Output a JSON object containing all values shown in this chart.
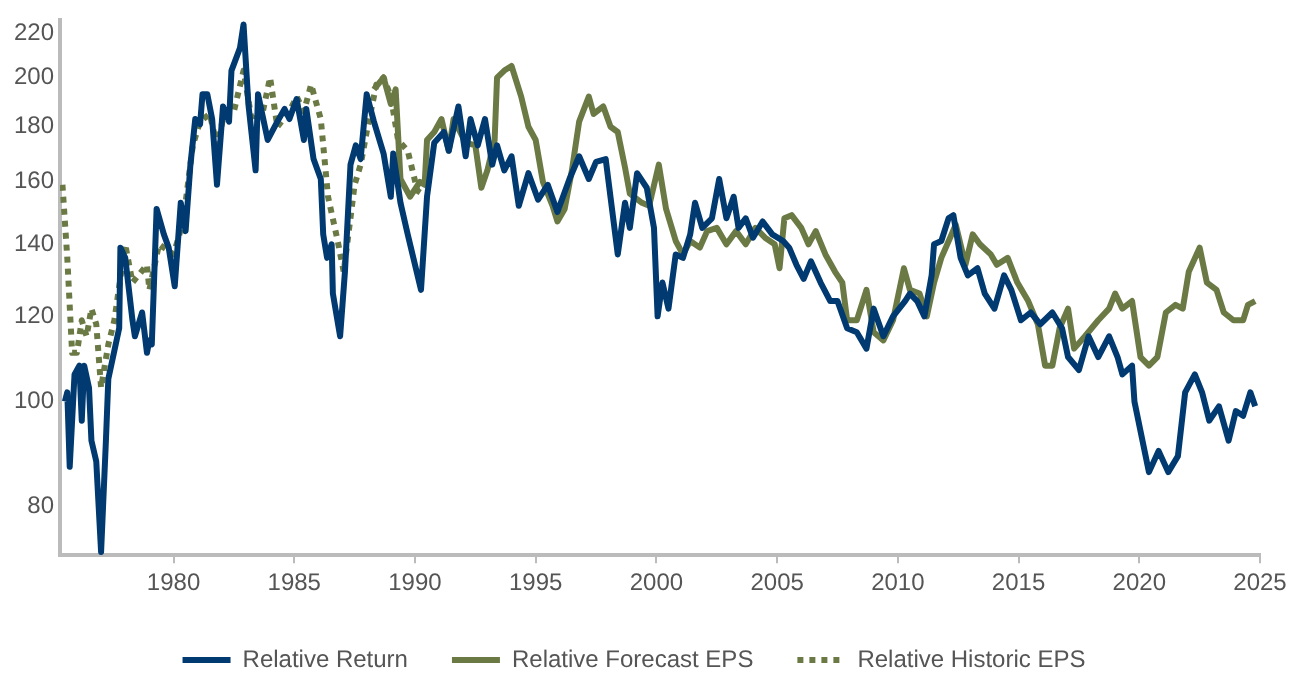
{
  "chart_data": {
    "type": "line",
    "log": "y",
    "xlim": [
      1975.3,
      2025
    ],
    "xticks": [
      1980,
      1985,
      1990,
      1995,
      2000,
      2005,
      2010,
      2015,
      2020,
      2025
    ],
    "ylim": [
      72,
      226
    ],
    "yticks": [
      80,
      100,
      120,
      140,
      160,
      180,
      200,
      220
    ],
    "grid": false,
    "legend": "bottom",
    "series": [
      {
        "name": "Relative Return",
        "color": "#003a70",
        "line_style": "solid",
        "x": [
          1975.5,
          1975.6,
          1975.7,
          1975.9,
          1976.1,
          1976.2,
          1976.3,
          1976.5,
          1976.6,
          1976.8,
          1977.0,
          1977.2,
          1977.3,
          1977.75,
          1977.8,
          1978.0,
          1978.3,
          1978.4,
          1978.7,
          1978.9,
          1979.0,
          1979.1,
          1979.3,
          1979.6,
          1979.8,
          1980.05,
          1980.3,
          1980.5,
          1980.7,
          1980.9,
          1981.1,
          1981.2,
          1981.4,
          1981.6,
          1981.8,
          1982.05,
          1982.3,
          1982.4,
          1982.75,
          1982.9,
          1983.1,
          1983.4,
          1983.5,
          1983.9,
          1984.3,
          1984.6,
          1984.8,
          1985.1,
          1985.4,
          1985.5,
          1985.8,
          1986.1,
          1986.2,
          1986.36,
          1986.55,
          1986.6,
          1986.9,
          1987.1,
          1987.33,
          1987.55,
          1987.75,
          1988.0,
          1988.3,
          1988.7,
          1989.0,
          1989.1,
          1989.4,
          1989.7,
          1990.25,
          1990.5,
          1990.8,
          1991.2,
          1991.4,
          1991.8,
          1992.1,
          1992.3,
          1992.6,
          1992.9,
          1993.2,
          1993.4,
          1993.7,
          1994.0,
          1994.3,
          1994.7,
          1995.1,
          1995.5,
          1995.9,
          1996.4,
          1996.8,
          1997.2,
          1997.5,
          1997.9,
          1998.4,
          1998.7,
          1998.9,
          1999.2,
          1999.6,
          1999.9,
          2000.05,
          2000.25,
          2000.5,
          2000.8,
          2001.1,
          2001.4,
          2001.6,
          2001.9,
          2002.3,
          2002.6,
          2002.9,
          2003.2,
          2003.4,
          2003.7,
          2004.0,
          2004.4,
          2004.8,
          2005.25,
          2005.5,
          2005.8,
          2006.1,
          2006.4,
          2006.8,
          2007.2,
          2007.5,
          2007.9,
          2008.3,
          2008.7,
          2009.0,
          2009.4,
          2009.8,
          2010.3,
          2010.5,
          2010.8,
          2011.1,
          2011.4,
          2011.5,
          2011.8,
          2012.1,
          2012.3,
          2012.6,
          2012.9,
          2013.3,
          2013.6,
          2014.0,
          2014.4,
          2014.7,
          2015.1,
          2015.5,
          2015.9,
          2016.4,
          2016.8,
          2017.05,
          2017.5,
          2017.9,
          2018.3,
          2018.75,
          2019.1,
          2019.3,
          2019.7,
          2019.8,
          2020.4,
          2020.8,
          2021.2,
          2021.6,
          2021.9,
          2022.3,
          2022.6,
          2022.9,
          2023.3,
          2023.7,
          2024.0,
          2024.3,
          2024.6,
          2024.8
        ],
        "values": [
          100,
          102,
          87,
          106,
          108,
          96,
          108,
          103,
          92,
          88,
          72.5,
          92,
          105,
          117,
          139,
          136,
          119,
          115,
          121,
          111,
          114,
          113,
          151,
          143,
          139,
          128,
          153,
          144,
          166,
          183,
          181,
          193,
          193,
          183,
          159,
          188,
          182,
          203,
          213,
          224,
          189,
          164,
          193,
          175,
          182,
          187,
          183,
          191,
          175,
          187,
          168,
          161,
          143,
          136,
          140,
          126,
          115,
          132,
          166,
          173,
          168,
          193,
          182,
          170,
          155,
          170,
          153,
          143,
          127,
          155,
          174,
          178,
          171,
          188,
          169,
          183,
          173,
          183,
          166,
          173,
          164,
          169,
          152,
          163,
          154,
          159,
          150,
          161,
          169,
          161,
          167,
          168,
          137,
          153,
          145,
          163,
          158,
          145,
          120,
          129,
          122,
          137,
          136,
          143,
          153,
          145,
          148,
          161,
          148,
          155,
          145,
          148,
          142,
          147,
          143,
          141,
          139,
          134,
          130,
          135,
          129,
          124,
          124,
          117,
          116,
          112,
          122,
          115,
          120,
          124,
          126,
          124,
          120,
          131,
          140,
          141,
          148,
          149,
          136,
          131,
          133,
          126,
          122,
          131,
          127,
          119,
          121,
          118,
          121,
          117,
          110,
          107,
          115,
          110,
          115,
          110,
          106,
          108,
          100,
          86,
          90,
          86,
          89,
          102,
          106,
          102,
          96,
          99,
          92,
          98,
          97,
          102,
          99
        ]
      },
      {
        "name": "Relative Forecast EPS",
        "color": "#6b7a45",
        "line_style": "solid",
        "x": [
          1988.3,
          1988.7,
          1989.0,
          1989.2,
          1989.4,
          1989.8,
          1990.2,
          1990.4,
          1990.5,
          1990.8,
          1991.1,
          1991.4,
          1991.6,
          1992.1,
          1992.5,
          1992.75,
          1993.0,
          1993.3,
          1993.4,
          1993.7,
          1994.0,
          1994.4,
          1994.7,
          1995.0,
          1995.3,
          1995.7,
          1995.9,
          1996.2,
          1996.5,
          1996.8,
          1997.2,
          1997.4,
          1997.8,
          1998.1,
          1998.4,
          1998.7,
          1998.9,
          1999.4,
          1999.7,
          2000.1,
          2000.4,
          2000.8,
          2001.1,
          2001.4,
          2001.8,
          2002.1,
          2002.5,
          2002.9,
          2003.3,
          2003.7,
          2004.1,
          2004.5,
          2004.9,
          2005.1,
          2005.3,
          2005.6,
          2006.0,
          2006.3,
          2006.6,
          2007.0,
          2007.4,
          2007.7,
          2007.9,
          2008.3,
          2008.7,
          2009.0,
          2009.4,
          2009.8,
          2010.25,
          2010.5,
          2010.9,
          2011.2,
          2011.5,
          2011.8,
          2012.4,
          2012.8,
          2013.1,
          2013.4,
          2013.85,
          2014.1,
          2014.55,
          2014.95,
          2015.4,
          2015.8,
          2016.1,
          2016.4,
          2016.7,
          2017.05,
          2017.3,
          2017.75,
          2018.3,
          2018.75,
          2019.0,
          2019.3,
          2019.7,
          2020.05,
          2020.4,
          2020.75,
          2021.1,
          2021.5,
          2021.8,
          2022.05,
          2022.5,
          2022.8,
          2023.2,
          2023.5,
          2023.9,
          2024.3,
          2024.5,
          2024.8
        ],
        "values": [
          195,
          200,
          189,
          195,
          161,
          155,
          160,
          159,
          175,
          178,
          183,
          171,
          183,
          174,
          173,
          158,
          164,
          175,
          200,
          203,
          205,
          192,
          180,
          175,
          160,
          152,
          147,
          151,
          164,
          182,
          192,
          185,
          188,
          180,
          178,
          165,
          156,
          153,
          152,
          166,
          151,
          141,
          137,
          141,
          139,
          144,
          145,
          140,
          144,
          140,
          145,
          142,
          140,
          133,
          148,
          149,
          145,
          140,
          144,
          137,
          132,
          129,
          119,
          119,
          127,
          116,
          114,
          119,
          133,
          127,
          126,
          120,
          129,
          136,
          146,
          134,
          143,
          140,
          137,
          134,
          136,
          129,
          124,
          118,
          108,
          108,
          117,
          122,
          112,
          115,
          119,
          122,
          126,
          122,
          124,
          110,
          108,
          110,
          121,
          123,
          122,
          132,
          139,
          129,
          127,
          121,
          119,
          119,
          123,
          124
        ]
      },
      {
        "name": "Relative Historic EPS",
        "color": "#6b7a45",
        "line_style": "dotted",
        "x": [
          1975.4,
          1975.6,
          1975.8,
          1976.0,
          1976.2,
          1976.4,
          1976.6,
          1976.8,
          1977.0,
          1977.3,
          1977.55,
          1978.0,
          1978.3,
          1978.9,
          1979.0,
          1979.4,
          1980.0,
          1980.4,
          1980.8,
          1981.1,
          1981.5,
          1981.8,
          1982.1,
          1982.5,
          1982.9,
          1983.25,
          1983.7,
          1984.0,
          1984.3,
          1984.8,
          1985.1,
          1985.4,
          1985.7,
          1986.1,
          1986.4,
          1986.8,
          1987.05,
          1987.5,
          1987.75,
          1988.0,
          1988.4,
          1988.7,
          1989.0,
          1989.3,
          1989.7,
          1990.1,
          1990.5
        ],
        "values": [
          159,
          136,
          111,
          111,
          119,
          115,
          122,
          118,
          103,
          113,
          119,
          140,
          129,
          134,
          127,
          140,
          137,
          147,
          173,
          182,
          185,
          173,
          185,
          186,
          203,
          182,
          186,
          200,
          180,
          186,
          192,
          186,
          197,
          183,
          155,
          141,
          132,
          159,
          166,
          178,
          197,
          200,
          192,
          175,
          171,
          157,
          155
        ]
      }
    ]
  }
}
